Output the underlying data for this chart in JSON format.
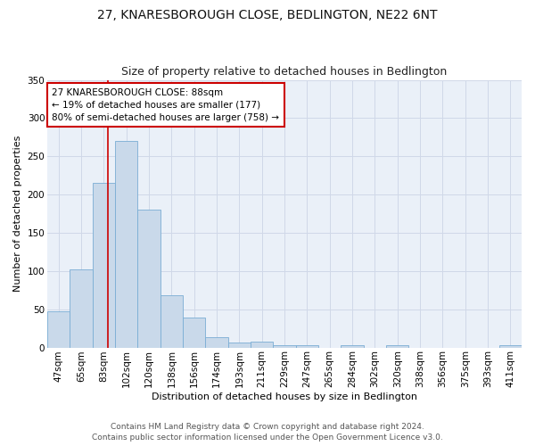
{
  "title": "27, KNARESBOROUGH CLOSE, BEDLINGTON, NE22 6NT",
  "subtitle": "Size of property relative to detached houses in Bedlington",
  "xlabel": "Distribution of detached houses by size in Bedlington",
  "ylabel": "Number of detached properties",
  "categories": [
    "47sqm",
    "65sqm",
    "83sqm",
    "102sqm",
    "120sqm",
    "138sqm",
    "156sqm",
    "174sqm",
    "193sqm",
    "211sqm",
    "229sqm",
    "247sqm",
    "265sqm",
    "284sqm",
    "302sqm",
    "320sqm",
    "338sqm",
    "356sqm",
    "375sqm",
    "393sqm",
    "411sqm"
  ],
  "values": [
    47,
    102,
    215,
    270,
    180,
    68,
    39,
    14,
    7,
    8,
    3,
    3,
    0,
    3,
    0,
    3,
    0,
    0,
    0,
    0,
    3
  ],
  "bar_color": "#c9d9ea",
  "bar_edge_color": "#7aadd4",
  "red_line_color": "#cc0000",
  "annotation_line1": "27 KNARESBOROUGH CLOSE: 88sqm",
  "annotation_line2": "← 19% of detached houses are smaller (177)",
  "annotation_line3": "80% of semi-detached houses are larger (758) →",
  "annotation_box_color": "#ffffff",
  "annotation_box_edge_color": "#cc0000",
  "ylim": [
    0,
    350
  ],
  "yticks": [
    0,
    50,
    100,
    150,
    200,
    250,
    300,
    350
  ],
  "footer_line1": "Contains HM Land Registry data © Crown copyright and database right 2024.",
  "footer_line2": "Contains public sector information licensed under the Open Government Licence v3.0.",
  "title_fontsize": 10,
  "subtitle_fontsize": 9,
  "axis_label_fontsize": 8,
  "tick_fontsize": 7.5,
  "annotation_fontsize": 7.5,
  "footer_fontsize": 6.5,
  "background_color": "#ffffff",
  "plot_bg_color": "#eaf0f8",
  "grid_color": "#d0d8e8"
}
